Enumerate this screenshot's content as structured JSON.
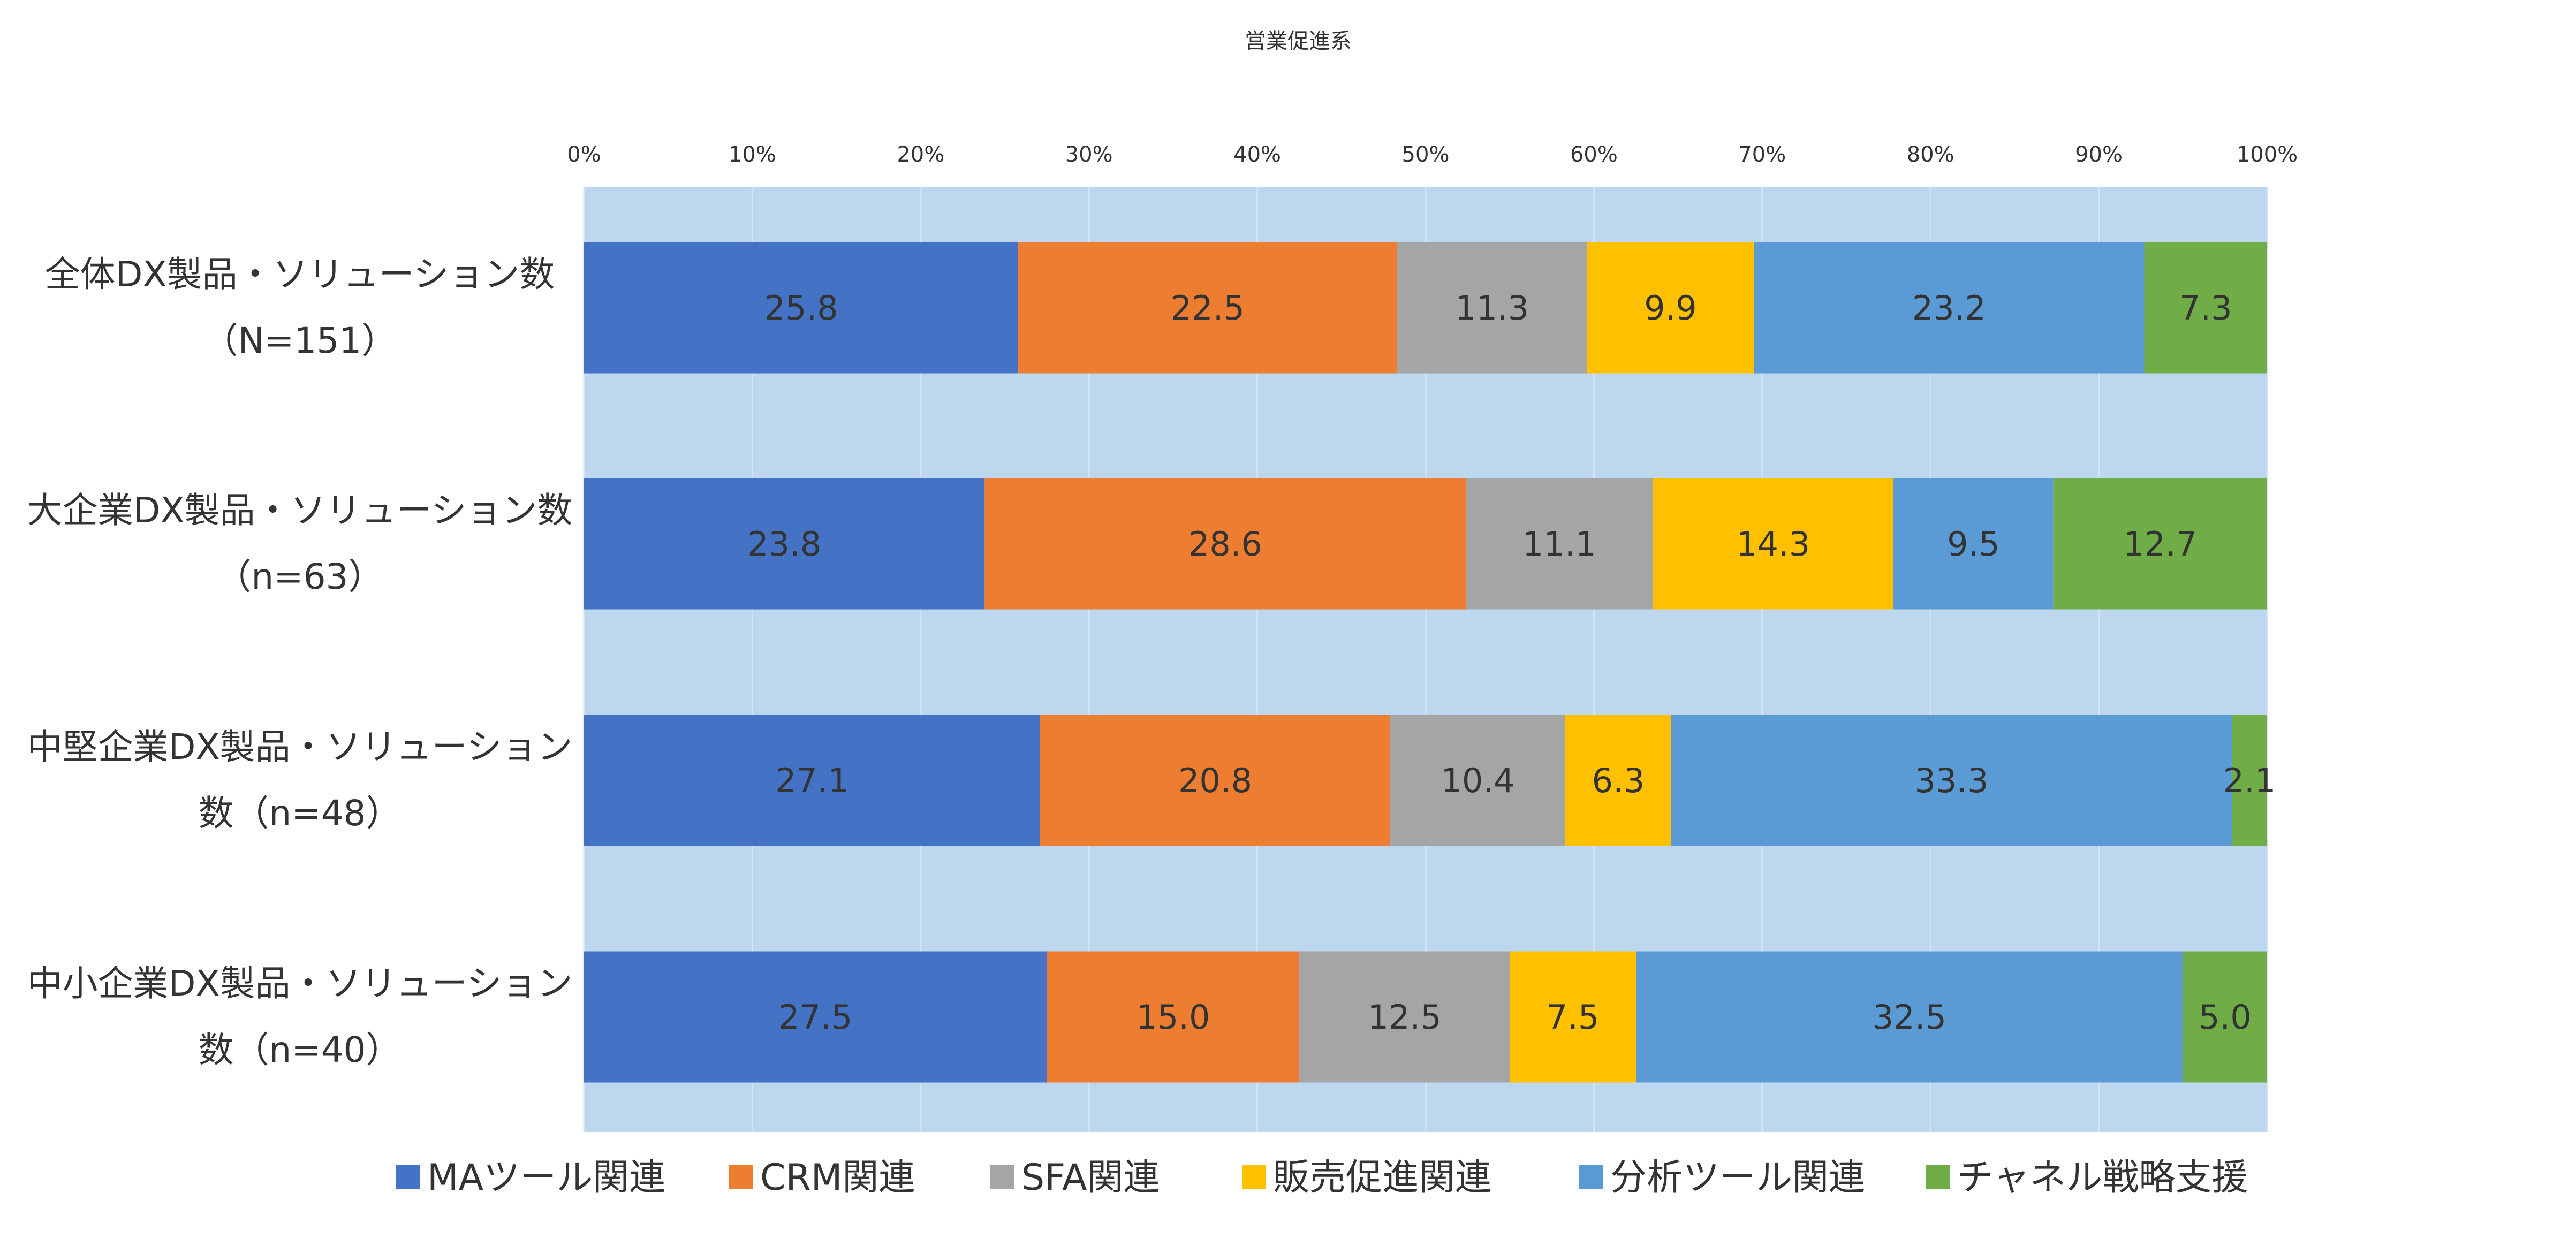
{
  "chart_data": {
    "type": "bar",
    "orientation": "horizontal",
    "stacked": "percent",
    "title": "営業促進系",
    "x_ticks": [
      "0%",
      "10%",
      "20%",
      "30%",
      "40%",
      "50%",
      "60%",
      "70%",
      "80%",
      "90%",
      "100%"
    ],
    "xlim": [
      0,
      100
    ],
    "grid": true,
    "legend_position": "bottom",
    "plot_background": "#BDD7EE",
    "categories": [
      [
        "全体DX製品・ソリューション数",
        "（N=151）"
      ],
      [
        "大企業DX製品・ソリューション数",
        "（n=63）"
      ],
      [
        "中堅企業DX製品・ソリューション",
        "数（n=48）"
      ],
      [
        "中小企業DX製品・ソリューション",
        "数（n=40）"
      ]
    ],
    "series": [
      {
        "name": "MAツール関連",
        "color": "#4472C4",
        "values": [
          25.8,
          23.8,
          27.1,
          27.5
        ],
        "labels": [
          "25.8",
          "23.8",
          "27.1",
          "27.5"
        ]
      },
      {
        "name": "CRM関連",
        "color": "#ED7D31",
        "values": [
          22.5,
          28.6,
          20.8,
          15.0
        ],
        "labels": [
          "22.5",
          "28.6",
          "20.8",
          "15.0"
        ]
      },
      {
        "name": "SFA関連",
        "color": "#A5A5A5",
        "values": [
          11.3,
          11.1,
          10.4,
          12.5
        ],
        "labels": [
          "11.3",
          "11.1",
          "10.4",
          "12.5"
        ]
      },
      {
        "name": "販売促進関連",
        "color": "#FFC000",
        "values": [
          9.9,
          14.3,
          6.3,
          7.5
        ],
        "labels": [
          "9.9",
          "14.3",
          "6.3",
          "7.5"
        ]
      },
      {
        "name": "分析ツール関連",
        "color": "#5B9BD5",
        "values": [
          23.2,
          9.5,
          33.3,
          32.5
        ],
        "labels": [
          "23.2",
          "9.5",
          "33.3",
          "32.5"
        ]
      },
      {
        "name": "チャネル戦略支援",
        "color": "#70AD47",
        "values": [
          7.3,
          12.7,
          2.1,
          5.0
        ],
        "labels": [
          "7.3",
          "12.7",
          "2.1",
          "5.0"
        ]
      }
    ]
  }
}
